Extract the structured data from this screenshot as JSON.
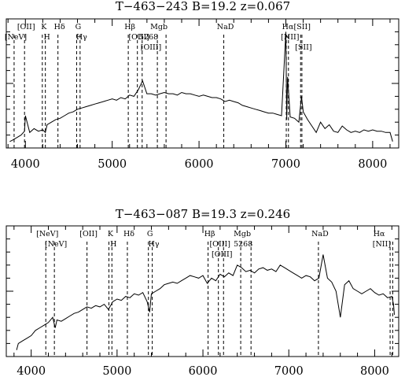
{
  "chart_data": [
    {
      "type": "line",
      "title": "T−463−243  B=19.2  z=0.067",
      "xlabel": "",
      "ylabel": "",
      "xlim": [
        3780,
        8300
      ],
      "ylim": [
        0,
        1
      ],
      "x_ticks": [
        "4000",
        "5000",
        "6000",
        "7000",
        "8000"
      ],
      "x_tick_values": [
        4000,
        5000,
        6000,
        7000,
        8000
      ],
      "lines": [
        {
          "label": "[NeV]",
          "x": 3870
        },
        {
          "label": "[OII]",
          "x": 3990
        },
        {
          "label": "K",
          "x": 4195
        },
        {
          "label": "H",
          "x": 4230
        },
        {
          "label": "Hδ",
          "x": 4375
        },
        {
          "label": "G",
          "x": 4590
        },
        {
          "label": "Hγ",
          "x": 4630
        },
        {
          "label": "Hβ",
          "x": 5185
        },
        {
          "label": "[OIII]",
          "x": 5290
        },
        {
          "label": "[OIII]",
          "x": 5345
        },
        {
          "label": "Mgb",
          "x": 5520
        },
        {
          "label": "5268",
          "x": 5620
        },
        {
          "label": "NaD",
          "x": 6285
        },
        {
          "label": "Hα",
          "x": 7005
        },
        {
          "label": "[NII]",
          "x": 7030
        },
        {
          "label": "[SII]",
          "x": 7170
        },
        {
          "label": "[SII]",
          "x": 7185
        }
      ],
      "spectrum_x": [
        3820,
        3850,
        3900,
        3950,
        3990,
        4000,
        4050,
        4100,
        4150,
        4200,
        4230,
        4250,
        4300,
        4350,
        4400,
        4450,
        4500,
        4550,
        4600,
        4650,
        4700,
        4750,
        4800,
        4850,
        4900,
        4950,
        5000,
        5050,
        5100,
        5150,
        5200,
        5250,
        5300,
        5350,
        5400,
        5450,
        5500,
        5550,
        5600,
        5650,
        5700,
        5750,
        5800,
        5850,
        5900,
        5950,
        6000,
        6050,
        6100,
        6150,
        6200,
        6250,
        6300,
        6350,
        6400,
        6450,
        6500,
        6550,
        6600,
        6650,
        6700,
        6750,
        6800,
        6850,
        6900,
        6950,
        7000,
        7010,
        7020,
        7030,
        7050,
        7100,
        7150,
        7180,
        7200,
        7250,
        7300,
        7350,
        7400,
        7450,
        7500,
        7550,
        7600,
        7650,
        7700,
        7750,
        7800,
        7850,
        7900,
        7950,
        8000,
        8050,
        8100,
        8150,
        8200,
        8230
      ],
      "spectrum_y": [
        0.05,
        0.06,
        0.08,
        0.1,
        0.13,
        0.25,
        0.12,
        0.15,
        0.13,
        0.14,
        0.12,
        0.18,
        0.2,
        0.22,
        0.23,
        0.25,
        0.27,
        0.28,
        0.3,
        0.31,
        0.32,
        0.33,
        0.34,
        0.35,
        0.36,
        0.37,
        0.38,
        0.37,
        0.39,
        0.38,
        0.41,
        0.4,
        0.45,
        0.52,
        0.42,
        0.42,
        0.41,
        0.42,
        0.43,
        0.42,
        0.42,
        0.41,
        0.43,
        0.42,
        0.42,
        0.41,
        0.4,
        0.41,
        0.4,
        0.39,
        0.39,
        0.38,
        0.36,
        0.37,
        0.36,
        0.35,
        0.33,
        0.32,
        0.31,
        0.3,
        0.29,
        0.28,
        0.27,
        0.27,
        0.26,
        0.25,
        0.9,
        0.22,
        0.55,
        0.45,
        0.24,
        0.23,
        0.2,
        0.4,
        0.28,
        0.22,
        0.17,
        0.12,
        0.2,
        0.15,
        0.18,
        0.13,
        0.12,
        0.17,
        0.14,
        0.12,
        0.13,
        0.12,
        0.14,
        0.13,
        0.14,
        0.13,
        0.13,
        0.12,
        0.12,
        0.05
      ]
    },
    {
      "type": "line",
      "title": "T−463−087  B=19.3  z=0.246",
      "xlabel": "",
      "ylabel": "",
      "xlim": [
        3710,
        8280
      ],
      "ylim": [
        0,
        1
      ],
      "x_ticks": [
        "4000",
        "5000",
        "6000",
        "7000",
        "8000"
      ],
      "x_tick_values": [
        4000,
        5000,
        6000,
        7000,
        8000
      ],
      "lines": [
        {
          "label": "[NeV]",
          "x": 4170
        },
        {
          "label": "[NeV]",
          "x": 4270
        },
        {
          "label": "[OII]",
          "x": 4650
        },
        {
          "label": "K",
          "x": 4905
        },
        {
          "label": "H",
          "x": 4940
        },
        {
          "label": "Hδ",
          "x": 5120
        },
        {
          "label": "G",
          "x": 5365
        },
        {
          "label": "Hγ",
          "x": 5410
        },
        {
          "label": "Hβ",
          "x": 6060
        },
        {
          "label": "[OIII]",
          "x": 6180
        },
        {
          "label": "[OIII]",
          "x": 6240
        },
        {
          "label": "Mgb",
          "x": 6440
        },
        {
          "label": "5268",
          "x": 6560
        },
        {
          "label": "NaD",
          "x": 7345
        },
        {
          "label": "Hα",
          "x": 8180
        },
        {
          "label": "[NII]",
          "x": 8210
        }
      ],
      "spectrum_x": [
        3830,
        3850,
        3900,
        3950,
        4000,
        4050,
        4100,
        4150,
        4200,
        4250,
        4280,
        4300,
        4350,
        4400,
        4450,
        4500,
        4550,
        4600,
        4650,
        4700,
        4750,
        4800,
        4850,
        4900,
        4950,
        5000,
        5050,
        5100,
        5150,
        5200,
        5250,
        5300,
        5350,
        5380,
        5400,
        5450,
        5500,
        5550,
        5600,
        5650,
        5700,
        5750,
        5800,
        5850,
        5900,
        5950,
        6000,
        6050,
        6100,
        6150,
        6200,
        6250,
        6300,
        6350,
        6400,
        6450,
        6500,
        6550,
        6600,
        6650,
        6700,
        6750,
        6800,
        6850,
        6900,
        6950,
        7000,
        7050,
        7100,
        7150,
        7200,
        7250,
        7300,
        7350,
        7400,
        7450,
        7500,
        7550,
        7600,
        7650,
        7700,
        7750,
        7800,
        7850,
        7900,
        7950,
        8000,
        8050,
        8100,
        8150,
        8200,
        8220,
        8230
      ],
      "spectrum_y": [
        0.05,
        0.1,
        0.12,
        0.14,
        0.16,
        0.2,
        0.22,
        0.24,
        0.26,
        0.3,
        0.22,
        0.28,
        0.27,
        0.29,
        0.31,
        0.33,
        0.34,
        0.36,
        0.38,
        0.37,
        0.39,
        0.38,
        0.4,
        0.36,
        0.42,
        0.44,
        0.43,
        0.46,
        0.45,
        0.48,
        0.47,
        0.49,
        0.42,
        0.34,
        0.48,
        0.5,
        0.52,
        0.55,
        0.56,
        0.57,
        0.56,
        0.58,
        0.6,
        0.62,
        0.61,
        0.6,
        0.62,
        0.56,
        0.6,
        0.58,
        0.63,
        0.61,
        0.64,
        0.62,
        0.7,
        0.68,
        0.65,
        0.66,
        0.64,
        0.67,
        0.68,
        0.66,
        0.67,
        0.65,
        0.7,
        0.68,
        0.66,
        0.64,
        0.62,
        0.6,
        0.62,
        0.61,
        0.58,
        0.6,
        0.78,
        0.6,
        0.57,
        0.5,
        0.3,
        0.55,
        0.58,
        0.52,
        0.5,
        0.48,
        0.5,
        0.52,
        0.49,
        0.47,
        0.48,
        0.45,
        0.46,
        0.4,
        0.32
      ]
    }
  ]
}
